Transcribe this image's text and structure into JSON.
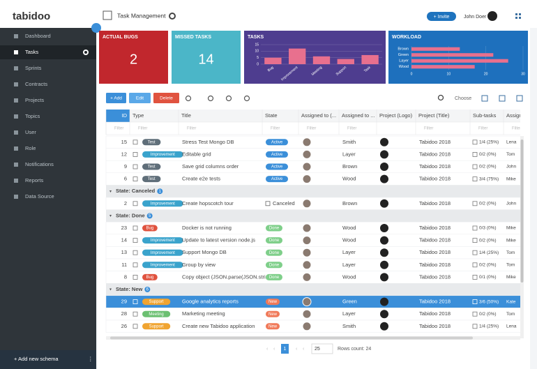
{
  "logo": "tabidoo",
  "header": {
    "title": "Task Management",
    "invite": "+ Invite",
    "user": "John Doer"
  },
  "sidebar": {
    "items": [
      "Dashboard",
      "Tasks",
      "Sprints",
      "Contracts",
      "Projects",
      "Topics",
      "User",
      "Role",
      "Notifications",
      "Reports",
      "Data Source"
    ],
    "active": "Tasks",
    "add": "+ Add new schema"
  },
  "cards": [
    {
      "title": "ACTUAL BUGS",
      "value": 2,
      "color": "#c1272d"
    },
    {
      "title": "MISSED TASKS",
      "value": 14,
      "color": "#4bb6c8"
    }
  ],
  "tasks_chart": {
    "type": "bar",
    "title": "TASKS",
    "background": "#4e3d8f",
    "color": "#e8708e",
    "categories": [
      "Bug",
      "Improvement",
      "Meeting",
      "Support",
      "Task"
    ],
    "values": [
      5,
      12,
      6,
      4,
      7
    ],
    "ylim": [
      0,
      15
    ],
    "yticks": [
      0,
      5,
      10,
      15
    ]
  },
  "workload_chart": {
    "type": "horizontal-bar",
    "title": "WORKLOAD",
    "background": "#1e70bd",
    "color": "#e8708e",
    "categories": [
      "Brown",
      "Green",
      "Layer",
      "Wood"
    ],
    "values": [
      13,
      22,
      26,
      17
    ],
    "xlim": [
      0,
      30
    ],
    "xticks": [
      0,
      10,
      20,
      30
    ]
  },
  "toolbar": {
    "add": "+ Add",
    "edit": "Edit",
    "delete": "Delete",
    "choose": "Choose"
  },
  "table": {
    "columns": [
      "ID",
      "Type",
      "Title",
      "State",
      "Assigned to (...",
      "Assigned to ...",
      "Project (Logo)",
      "Project (Title)",
      "Sub-tasks",
      "Assigne"
    ],
    "filter": "Filter",
    "type_colors": {
      "Test": "#5f6e79",
      "Improvement": "#3aa3cc",
      "Bug": "#e0533f",
      "Support": "#f0a431",
      "Meeting": "#6cc072"
    },
    "state_colors": {
      "Active": "#3b8fd9",
      "Done": "#7fcf8a",
      "New": "#f07a5a"
    },
    "rows": [
      {
        "id": 15,
        "type": "Test",
        "title": "Stress Test Mongo DB",
        "state": "Active",
        "assigned": "Smith",
        "project": "Tabidoo 2018",
        "subtasks": "1/4 (25%)",
        "assignee": "Lena"
      },
      {
        "id": 12,
        "type": "Improvement",
        "title": "Editable grid",
        "state": "Active",
        "assigned": "Layer",
        "project": "Tabidoo 2018",
        "subtasks": "0/2 (0%)",
        "assignee": "Tom"
      },
      {
        "id": 9,
        "type": "Test",
        "title": "Save grid columns order",
        "state": "Active",
        "assigned": "Brown",
        "project": "Tabidoo 2018",
        "subtasks": "0/2 (0%)",
        "assignee": "John"
      },
      {
        "id": 6,
        "type": "Test",
        "title": "Create e2e tests",
        "state": "Active",
        "assigned": "Wood",
        "project": "Tabidoo 2018",
        "subtasks": "3/4 (75%)",
        "assignee": "Mike"
      },
      {
        "group": "State: Canceled",
        "count": 1
      },
      {
        "id": 2,
        "type": "Improvement",
        "title": "Create hopscotch tour",
        "state": "Canceled",
        "assigned": "Brown",
        "project": "Tabidoo 2018",
        "subtasks": "0/2 (0%)",
        "assignee": "John"
      },
      {
        "group": "State: Done",
        "count": 5
      },
      {
        "id": 23,
        "type": "Bug",
        "title": "Docker is not running",
        "state": "Done",
        "assigned": "Wood",
        "project": "Tabidoo 2018",
        "subtasks": "0/3 (0%)",
        "assignee": "Mike"
      },
      {
        "id": 14,
        "type": "Improvement",
        "title": "Update to latest version node.js",
        "state": "Done",
        "assigned": "Wood",
        "project": "Tabidoo 2018",
        "subtasks": "0/2 (0%)",
        "assignee": "Mike"
      },
      {
        "id": 13,
        "type": "Improvement",
        "title": "Support Mongo DB",
        "state": "Done",
        "assigned": "Layer",
        "project": "Tabidoo 2018",
        "subtasks": "1/4 (25%)",
        "assignee": "Tom"
      },
      {
        "id": 11,
        "type": "Improvement",
        "title": "Group by view",
        "state": "Done",
        "assigned": "Layer",
        "project": "Tabidoo 2018",
        "subtasks": "0/2 (0%)",
        "assignee": "Tom"
      },
      {
        "id": 8,
        "type": "Bug",
        "title": "Copy object (JSON.parse(JSON.stri...",
        "state": "Done",
        "assigned": "Wood",
        "project": "Tabidoo 2018",
        "subtasks": "0/1 (0%)",
        "assignee": "Mike"
      },
      {
        "group": "State: New",
        "count": 6
      },
      {
        "id": 29,
        "type": "Support",
        "title": "Google analytics reports",
        "state": "New",
        "assigned": "Green",
        "project": "Tabidoo 2018",
        "subtasks": "3/6 (50%)",
        "assignee": "Kate",
        "selected": true
      },
      {
        "id": 28,
        "type": "Meeting",
        "title": "Marketing meeting",
        "state": "New",
        "assigned": "Layer",
        "project": "Tabidoo 2018",
        "subtasks": "0/2 (0%)",
        "assignee": "Tom"
      },
      {
        "id": 26,
        "type": "Support",
        "title": "Create new Tabidoo application",
        "state": "New",
        "assigned": "Smith",
        "project": "Tabidoo 2018",
        "subtasks": "1/4 (25%)",
        "assignee": "Lena"
      }
    ]
  },
  "pagination": {
    "page": 1,
    "page_size": 25,
    "rows_count": "Rows count: 24"
  }
}
